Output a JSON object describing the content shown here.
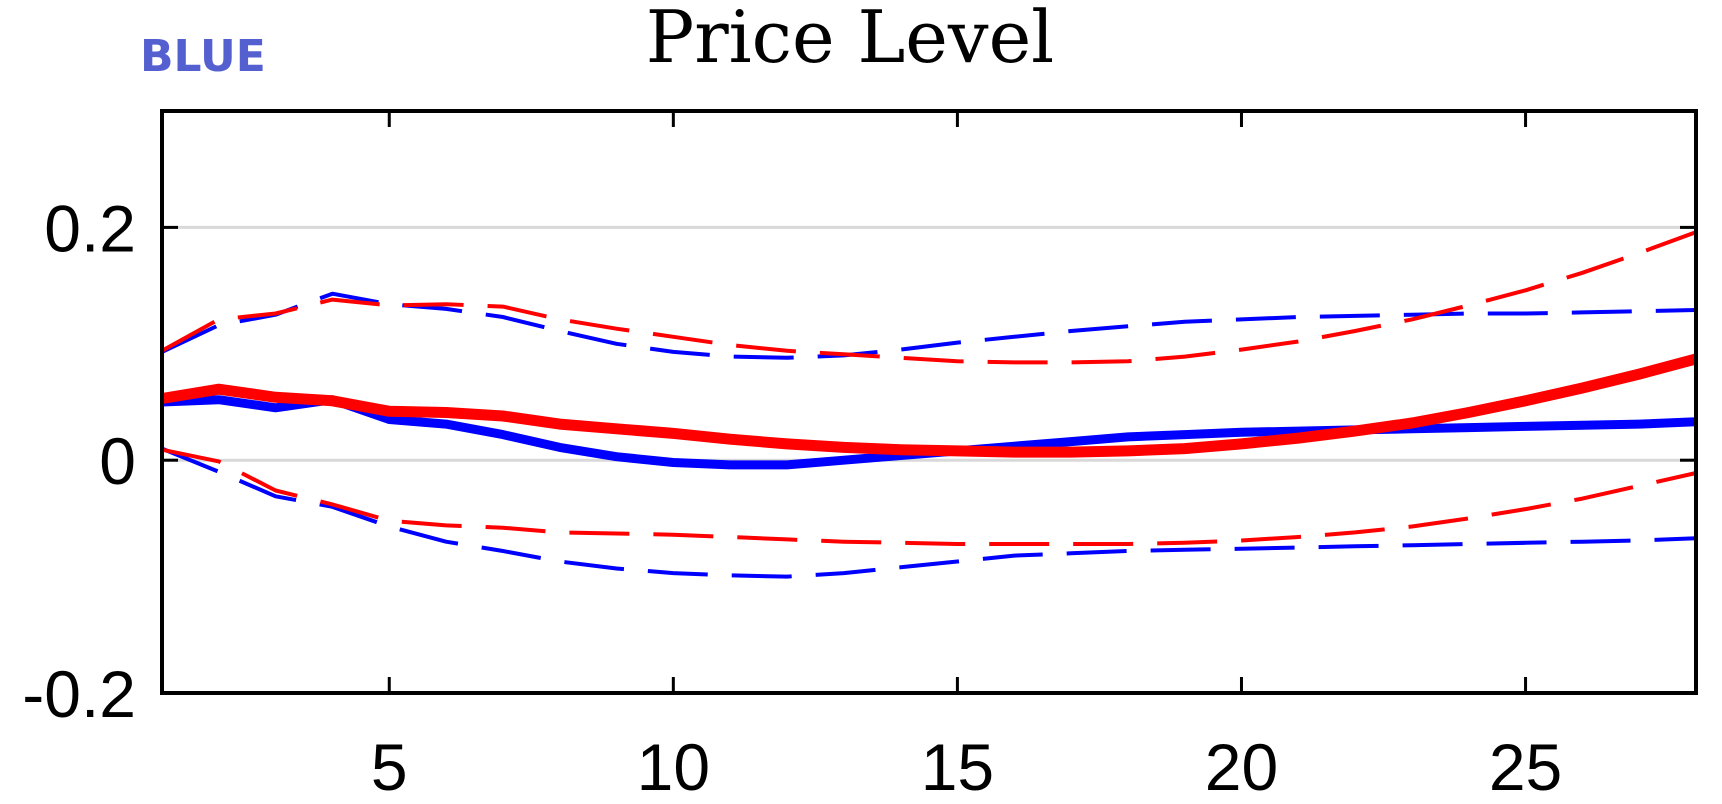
{
  "chart_data": {
    "type": "line",
    "title": "Price Level",
    "tag": "BLUE",
    "xlabel": "",
    "ylabel": "",
    "xlim": [
      1,
      28
    ],
    "ylim": [
      -0.2,
      0.3
    ],
    "xticks": [
      5,
      10,
      15,
      20,
      25
    ],
    "yticks": [
      -0.2,
      0,
      0.2
    ],
    "ytick_labels": [
      "-0.2",
      "0",
      "0.2"
    ],
    "grid_y": [
      0,
      0.2
    ],
    "legend": "none",
    "colors": {
      "blue": "#0000ff",
      "red": "#ff0000",
      "tag": "#5560d0",
      "grid": "#d9d9d9"
    },
    "x": [
      1,
      2,
      3,
      4,
      5,
      6,
      7,
      8,
      9,
      10,
      11,
      12,
      13,
      14,
      15,
      16,
      17,
      18,
      19,
      20,
      21,
      22,
      23,
      24,
      25,
      26,
      27,
      28
    ],
    "series": [
      {
        "color": "blue",
        "style": "solid",
        "width": 9,
        "values": [
          0.05,
          0.052,
          0.045,
          0.052,
          0.035,
          0.031,
          0.022,
          0.011,
          0.003,
          -0.002,
          -0.004,
          -0.004,
          0.0,
          0.004,
          0.008,
          0.012,
          0.016,
          0.02,
          0.022,
          0.024,
          0.025,
          0.026,
          0.027,
          0.028,
          0.029,
          0.03,
          0.031,
          0.033
        ]
      },
      {
        "color": "red",
        "style": "solid",
        "width": 11,
        "values": [
          0.053,
          0.061,
          0.054,
          0.051,
          0.042,
          0.041,
          0.038,
          0.031,
          0.027,
          0.023,
          0.018,
          0.014,
          0.011,
          0.009,
          0.008,
          0.007,
          0.007,
          0.008,
          0.01,
          0.014,
          0.019,
          0.025,
          0.032,
          0.041,
          0.051,
          0.062,
          0.074,
          0.087
        ]
      },
      {
        "color": "blue",
        "style": "dashed",
        "width": 4,
        "values": [
          0.093,
          0.116,
          0.125,
          0.143,
          0.134,
          0.13,
          0.123,
          0.111,
          0.1,
          0.093,
          0.089,
          0.088,
          0.09,
          0.095,
          0.101,
          0.106,
          0.111,
          0.115,
          0.119,
          0.121,
          0.123,
          0.124,
          0.125,
          0.126,
          0.126,
          0.127,
          0.128,
          0.129
        ]
      },
      {
        "color": "red",
        "style": "dashed",
        "width": 4,
        "values": [
          0.094,
          0.121,
          0.126,
          0.138,
          0.133,
          0.134,
          0.132,
          0.121,
          0.113,
          0.106,
          0.099,
          0.094,
          0.091,
          0.088,
          0.085,
          0.084,
          0.084,
          0.085,
          0.089,
          0.095,
          0.102,
          0.111,
          0.121,
          0.133,
          0.146,
          0.161,
          0.178,
          0.196
        ]
      },
      {
        "color": "blue",
        "style": "dashed",
        "width": 4,
        "values": [
          0.01,
          -0.01,
          -0.031,
          -0.04,
          -0.057,
          -0.07,
          -0.078,
          -0.087,
          -0.093,
          -0.097,
          -0.099,
          -0.1,
          -0.097,
          -0.092,
          -0.087,
          -0.082,
          -0.08,
          -0.078,
          -0.077,
          -0.076,
          -0.075,
          -0.074,
          -0.073,
          -0.072,
          -0.071,
          -0.07,
          -0.069,
          -0.067
        ]
      },
      {
        "color": "red",
        "style": "dashed",
        "width": 4,
        "values": [
          0.009,
          -0.001,
          -0.026,
          -0.038,
          -0.052,
          -0.056,
          -0.058,
          -0.062,
          -0.063,
          -0.064,
          -0.066,
          -0.068,
          -0.07,
          -0.071,
          -0.072,
          -0.072,
          -0.072,
          -0.072,
          -0.071,
          -0.069,
          -0.066,
          -0.062,
          -0.057,
          -0.05,
          -0.042,
          -0.033,
          -0.022,
          -0.011
        ]
      }
    ]
  }
}
